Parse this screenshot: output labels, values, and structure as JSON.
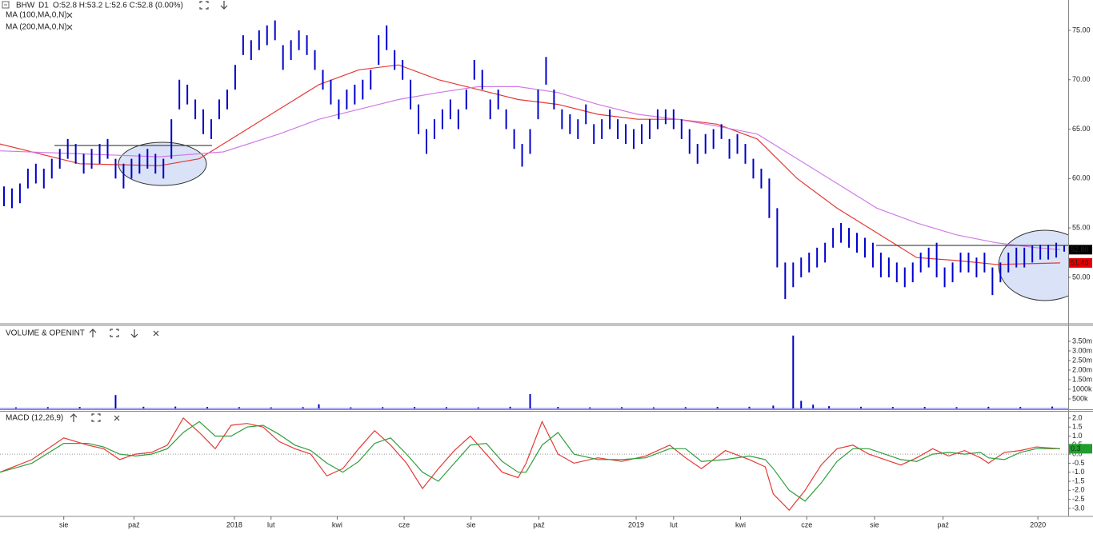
{
  "header": {
    "symbol": "BHW",
    "timeframe": "D1",
    "ohlc": "O:52.8 H:53.2 L:52.6 C:52.8 (0.00%)"
  },
  "chart_data": [
    {
      "type": "ohlc",
      "color": "#0000cc",
      "high": [
        59.2,
        59,
        59.5,
        61,
        61.5,
        61,
        62,
        63,
        64,
        63.5,
        62.5,
        63,
        63.5,
        64,
        62,
        61.5,
        62,
        62.5,
        63,
        62.5,
        62,
        66,
        70,
        69.5,
        68,
        67,
        66,
        68,
        69,
        71.5,
        74.5,
        74,
        75,
        75.5,
        76,
        73.5,
        74,
        75,
        74.5,
        73,
        71,
        70,
        68,
        69,
        69.5,
        70,
        71,
        74.5,
        75.5,
        73,
        72,
        70,
        67.5,
        65,
        66,
        67,
        68,
        67,
        69,
        72,
        71,
        68,
        69,
        67,
        65,
        63.5,
        65,
        69,
        72.3,
        69,
        67,
        66.5,
        66,
        67.5,
        65.5,
        66,
        67,
        66,
        65.5,
        65,
        65.5,
        66,
        67,
        67,
        67,
        66,
        65,
        63.5,
        64.5,
        65,
        65.5,
        64,
        64.5,
        63.5,
        62,
        61,
        60,
        57,
        51.5,
        51.5,
        52,
        52.5,
        53,
        53.5,
        55,
        55.5,
        55,
        54.5,
        54,
        53.5,
        52.5,
        52,
        51.5,
        51,
        51.5,
        52.5,
        53,
        53.5,
        51,
        51.5,
        52.5,
        52.5,
        52,
        52.5,
        51,
        51.5,
        52.5,
        53,
        53,
        53.2,
        53.3,
        53.3,
        53.5,
        53.2
      ],
      "low": [
        57.2,
        57,
        57.5,
        59,
        59.5,
        59,
        60,
        61,
        62,
        61.5,
        60.5,
        61,
        61.5,
        62,
        60,
        59,
        60,
        60.5,
        61,
        60.5,
        60,
        62,
        67,
        67.5,
        66,
        64.5,
        64,
        66,
        67,
        69,
        72.5,
        72,
        73,
        73.5,
        74,
        71,
        72,
        73,
        72.5,
        71,
        69,
        67.5,
        66,
        67,
        67.5,
        68,
        69,
        71.5,
        73,
        71,
        70,
        67,
        64.5,
        62.5,
        64,
        65,
        66,
        65,
        67,
        70,
        69,
        66,
        67,
        65,
        63,
        61.2,
        62.5,
        66,
        69.5,
        67,
        65,
        64.5,
        64,
        65.5,
        63.5,
        64,
        65,
        64,
        63.5,
        63,
        63.5,
        64,
        65,
        65.5,
        65,
        64,
        62.5,
        61.5,
        62.5,
        63,
        64,
        62,
        62.5,
        61.5,
        60,
        59,
        56,
        51,
        47.8,
        49,
        50,
        50.5,
        51,
        51.5,
        53,
        53.5,
        53,
        52.5,
        52,
        51,
        50,
        50,
        49.5,
        49,
        49.5,
        50.5,
        51,
        50,
        49,
        49.5,
        50.5,
        50.5,
        50,
        50.5,
        48.2,
        49.5,
        50.5,
        51,
        51,
        51.5,
        51.8,
        51.8,
        52,
        52.6
      ],
      "lines": [
        {
          "name": "MA (100,MA,0,N)",
          "color": "#e53935",
          "x": [
            0,
            10,
            20,
            25,
            30,
            35,
            40,
            45,
            50,
            55,
            60,
            65,
            70,
            75,
            80,
            85,
            90,
            95,
            100,
            105,
            110,
            115,
            120,
            125,
            130,
            133
          ],
          "values": [
            63.5,
            61.5,
            61.3,
            62,
            64.5,
            67,
            69.5,
            71,
            71.5,
            70,
            69,
            68,
            67.5,
            66.5,
            66,
            66,
            65.5,
            64,
            60,
            57,
            54.5,
            52,
            51.7,
            51.3,
            51.4,
            51.46
          ]
        },
        {
          "name": "MA (200,MA,0,N)",
          "color": "#d17ae6",
          "x": [
            0,
            10,
            20,
            28,
            35,
            40,
            45,
            50,
            55,
            60,
            65,
            70,
            75,
            80,
            85,
            90,
            95,
            100,
            105,
            110,
            115,
            120,
            125,
            130,
            133
          ],
          "values": [
            62.8,
            62.5,
            62.2,
            62.7,
            64.5,
            66,
            67,
            68,
            68.7,
            69.3,
            69.3,
            68.7,
            67.5,
            66.5,
            66,
            65.3,
            64.5,
            62,
            59.5,
            57,
            55.5,
            54.3,
            53.5,
            53,
            52.8
          ]
        }
      ],
      "price_tags": [
        {
          "value": 52.8,
          "label": "52.80",
          "color": "#000000"
        },
        {
          "value": 51.46,
          "label": "51.46",
          "color": "#e60000"
        }
      ],
      "xlim": [
        0,
        134
      ],
      "ylim": [
        45.3,
        78.07
      ],
      "yticks": [
        {
          "value": 50,
          "label": "50.00"
        },
        {
          "value": 55,
          "label": "55.00"
        },
        {
          "value": 60,
          "label": "60.00"
        },
        {
          "value": 65,
          "label": "65.00"
        },
        {
          "value": 70,
          "label": "70.00"
        },
        {
          "value": 75,
          "label": "75.00"
        }
      ],
      "xticks": [
        {
          "value": 8,
          "label": "sie"
        },
        {
          "value": 16.8,
          "label": "paź"
        },
        {
          "value": 29.4,
          "label": "2018"
        },
        {
          "value": 34,
          "label": "lut"
        },
        {
          "value": 42.3,
          "label": "kwi"
        },
        {
          "value": 50.7,
          "label": "cze"
        },
        {
          "value": 59.1,
          "label": "sie"
        },
        {
          "value": 67.6,
          "label": "paź"
        },
        {
          "value": 79.8,
          "label": "2019"
        },
        {
          "value": 84.5,
          "label": "lut"
        },
        {
          "value": 92.9,
          "label": "kwi"
        },
        {
          "value": 101.2,
          "label": "cze"
        },
        {
          "value": 109.7,
          "label": "sie"
        },
        {
          "value": 118.3,
          "label": "paź"
        },
        {
          "value": 130.2,
          "label": "2020"
        }
      ]
    },
    {
      "type": "bar",
      "title": "VOLUME & OPENINT",
      "color": "#0000cc",
      "x": [
        2,
        6,
        10,
        14.5,
        18,
        22,
        26,
        30,
        34,
        38,
        40,
        44,
        48,
        52,
        56,
        60,
        64,
        66.5,
        70,
        74,
        78,
        82,
        86,
        90,
        94,
        97,
        99.5,
        100.5,
        102,
        104,
        108,
        112,
        116,
        120,
        124,
        128,
        132
      ],
      "values": [
        60000,
        70000,
        80000,
        700000,
        90000,
        100000,
        80000,
        70000,
        60000,
        70000,
        220000,
        60000,
        70000,
        80000,
        70000,
        60000,
        90000,
        750000,
        80000,
        60000,
        70000,
        60000,
        70000,
        80000,
        90000,
        150000,
        3800000,
        400000,
        200000,
        120000,
        90000,
        80000,
        80000,
        70000,
        90000,
        80000,
        100000
      ],
      "xlim": [
        0,
        134
      ],
      "ylim": [
        0,
        4290000
      ],
      "yticks": [
        {
          "value": 500000,
          "label": "500k"
        },
        {
          "value": 1000000,
          "label": "1000k"
        },
        {
          "value": 1500000,
          "label": "1.50m"
        },
        {
          "value": 2000000,
          "label": "2.00m"
        },
        {
          "value": 2500000,
          "label": "2.50m"
        },
        {
          "value": 3000000,
          "label": "3.00m"
        },
        {
          "value": 3500000,
          "label": "3.50m"
        }
      ]
    },
    {
      "type": "line",
      "title": "MACD (12,26,9)",
      "x": [
        0,
        4,
        8,
        11,
        13,
        15,
        17,
        19,
        21,
        23,
        25,
        27,
        29,
        31,
        33,
        35,
        37,
        39,
        41,
        43,
        45,
        47,
        49,
        51,
        53,
        55,
        57,
        59,
        61,
        63,
        65,
        66,
        68,
        70,
        72,
        75,
        78,
        81,
        84,
        86,
        88,
        91,
        94,
        96,
        97,
        99,
        101,
        103,
        105,
        107,
        109,
        111,
        113,
        115,
        117,
        119,
        121,
        123,
        124,
        126,
        128,
        130,
        133
      ],
      "series": [
        {
          "color": "#e53935",
          "values": [
            -1,
            -0.3,
            0.9,
            0.5,
            0.3,
            -0.3,
            0,
            0.1,
            0.5,
            2,
            1.2,
            0.3,
            1.6,
            1.7,
            1.5,
            0.7,
            0.3,
            0,
            -1.2,
            -0.8,
            0.3,
            1.3,
            0.5,
            -0.5,
            -1.9,
            -0.8,
            0.2,
            1,
            0,
            -1,
            -1.3,
            -0.5,
            1.8,
            0,
            -0.5,
            -0.2,
            -0.4,
            -0.1,
            0.5,
            -0.2,
            -0.8,
            0.2,
            -0.3,
            -0.7,
            -2.2,
            -3.1,
            -2,
            -0.6,
            0.3,
            0.5,
            0,
            -0.3,
            -0.6,
            -0.2,
            0.3,
            -0.1,
            0.2,
            -0.2,
            -0.5,
            0.1,
            0.2,
            0.4,
            0.3
          ]
        },
        {
          "color": "#2e9e3a",
          "values": [
            -1,
            -0.5,
            0.6,
            0.6,
            0.4,
            0,
            -0.1,
            0,
            0.3,
            1.2,
            1.8,
            1,
            1,
            1.5,
            1.6,
            1.1,
            0.5,
            0.2,
            -0.5,
            -1,
            -0.4,
            0.6,
            0.9,
            0,
            -1,
            -1.5,
            -0.5,
            0.5,
            0.6,
            -0.4,
            -1,
            -1,
            0.5,
            1.2,
            0,
            -0.3,
            -0.3,
            -0.2,
            0.3,
            0.3,
            -0.4,
            -0.3,
            -0.1,
            -0.3,
            -0.8,
            -2,
            -2.6,
            -1.6,
            -0.4,
            0.3,
            0.3,
            0,
            -0.3,
            -0.4,
            0,
            0.1,
            0,
            0.1,
            -0.2,
            -0.3,
            0.1,
            0.3,
            0.3
          ]
        }
      ],
      "value_tag": {
        "value": 0.3,
        "label": "0.3",
        "color": "#1f9e2c"
      },
      "xlim": [
        0,
        134
      ],
      "ylim": [
        -3.4,
        2.35
      ],
      "yticks": [
        {
          "value": 2,
          "label": "2.0"
        },
        {
          "value": 1.5,
          "label": "1.5"
        },
        {
          "value": 1,
          "label": "1.0"
        },
        {
          "value": 0.5,
          "label": "0.5"
        },
        {
          "value": 0,
          "label": "0.0"
        },
        {
          "value": -0.5,
          "label": "-0.5"
        },
        {
          "value": -1,
          "label": "-1.0"
        },
        {
          "value": -1.5,
          "label": "-1.5"
        },
        {
          "value": -2,
          "label": "-2.0"
        },
        {
          "value": -2.5,
          "label": "-2.5"
        },
        {
          "value": -3,
          "label": "-3.0"
        }
      ]
    }
  ]
}
